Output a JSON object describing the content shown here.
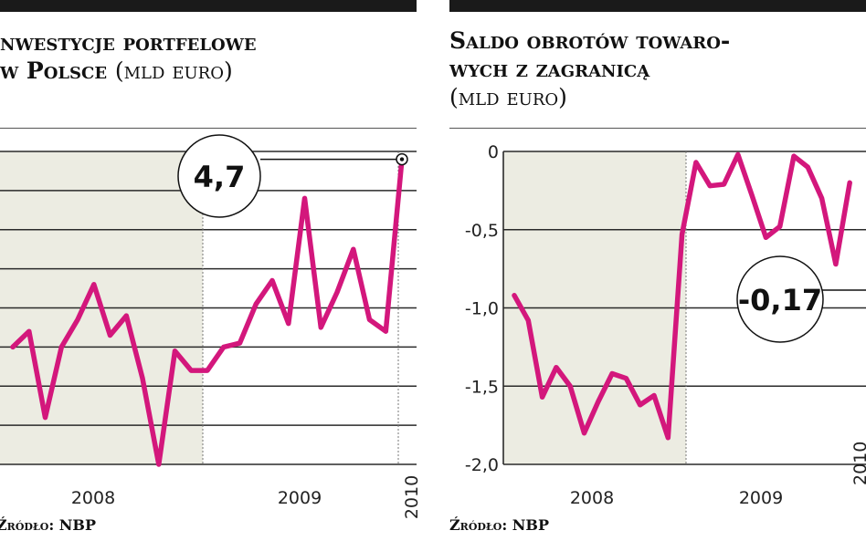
{
  "charts": [
    {
      "title_main": "nwestycje portfelowe",
      "title_line2_bold": "w Polsce",
      "title_unit": "(mld euro)",
      "source": "Źródło: NBP"
    },
    {
      "title_line1": "Saldo obrotów towaro-",
      "title_line2": "wych z zagranicą",
      "title_unit": "(mld euro)",
      "source": "Źródło: NBP"
    }
  ],
  "chart_data": [
    {
      "type": "line",
      "title": "Inwestycje portfelowe w Polsce (mld euro)",
      "color": "#d3177c",
      "x_labels": [
        "2008",
        "2009",
        "2010"
      ],
      "ylim": [
        0,
        8
      ],
      "values": [
        3.0,
        3.4,
        1.2,
        3.0,
        3.7,
        4.6,
        3.3,
        3.8,
        2.2,
        0,
        2.9,
        2.4,
        2.4,
        3.0,
        3.1,
        4.1,
        4.7,
        3.6,
        6.8,
        3.5,
        4.4,
        5.5,
        3.7,
        3.4,
        7.8
      ],
      "callout": "4,7"
    },
    {
      "type": "line",
      "title": "Saldo obrotów towarowych z zagranicą (mld euro)",
      "color": "#d3177c",
      "x_labels": [
        "2008",
        "2009",
        "2010"
      ],
      "y_ticks": [
        "0",
        "-0,5",
        "-1,0",
        "-1,5",
        "-2,0"
      ],
      "ylim": [
        -2.0,
        0
      ],
      "values": [
        -0.92,
        -1.08,
        -1.57,
        -1.38,
        -1.5,
        -1.8,
        -1.6,
        -1.42,
        -1.45,
        -1.62,
        -1.56,
        -1.83,
        -0.53,
        -0.07,
        -0.22,
        -0.21,
        -0.02,
        -0.28,
        -0.55,
        -0.48,
        -0.03,
        -0.1,
        -0.3,
        -0.72,
        -0.2
      ],
      "callout": "-0,17"
    }
  ]
}
